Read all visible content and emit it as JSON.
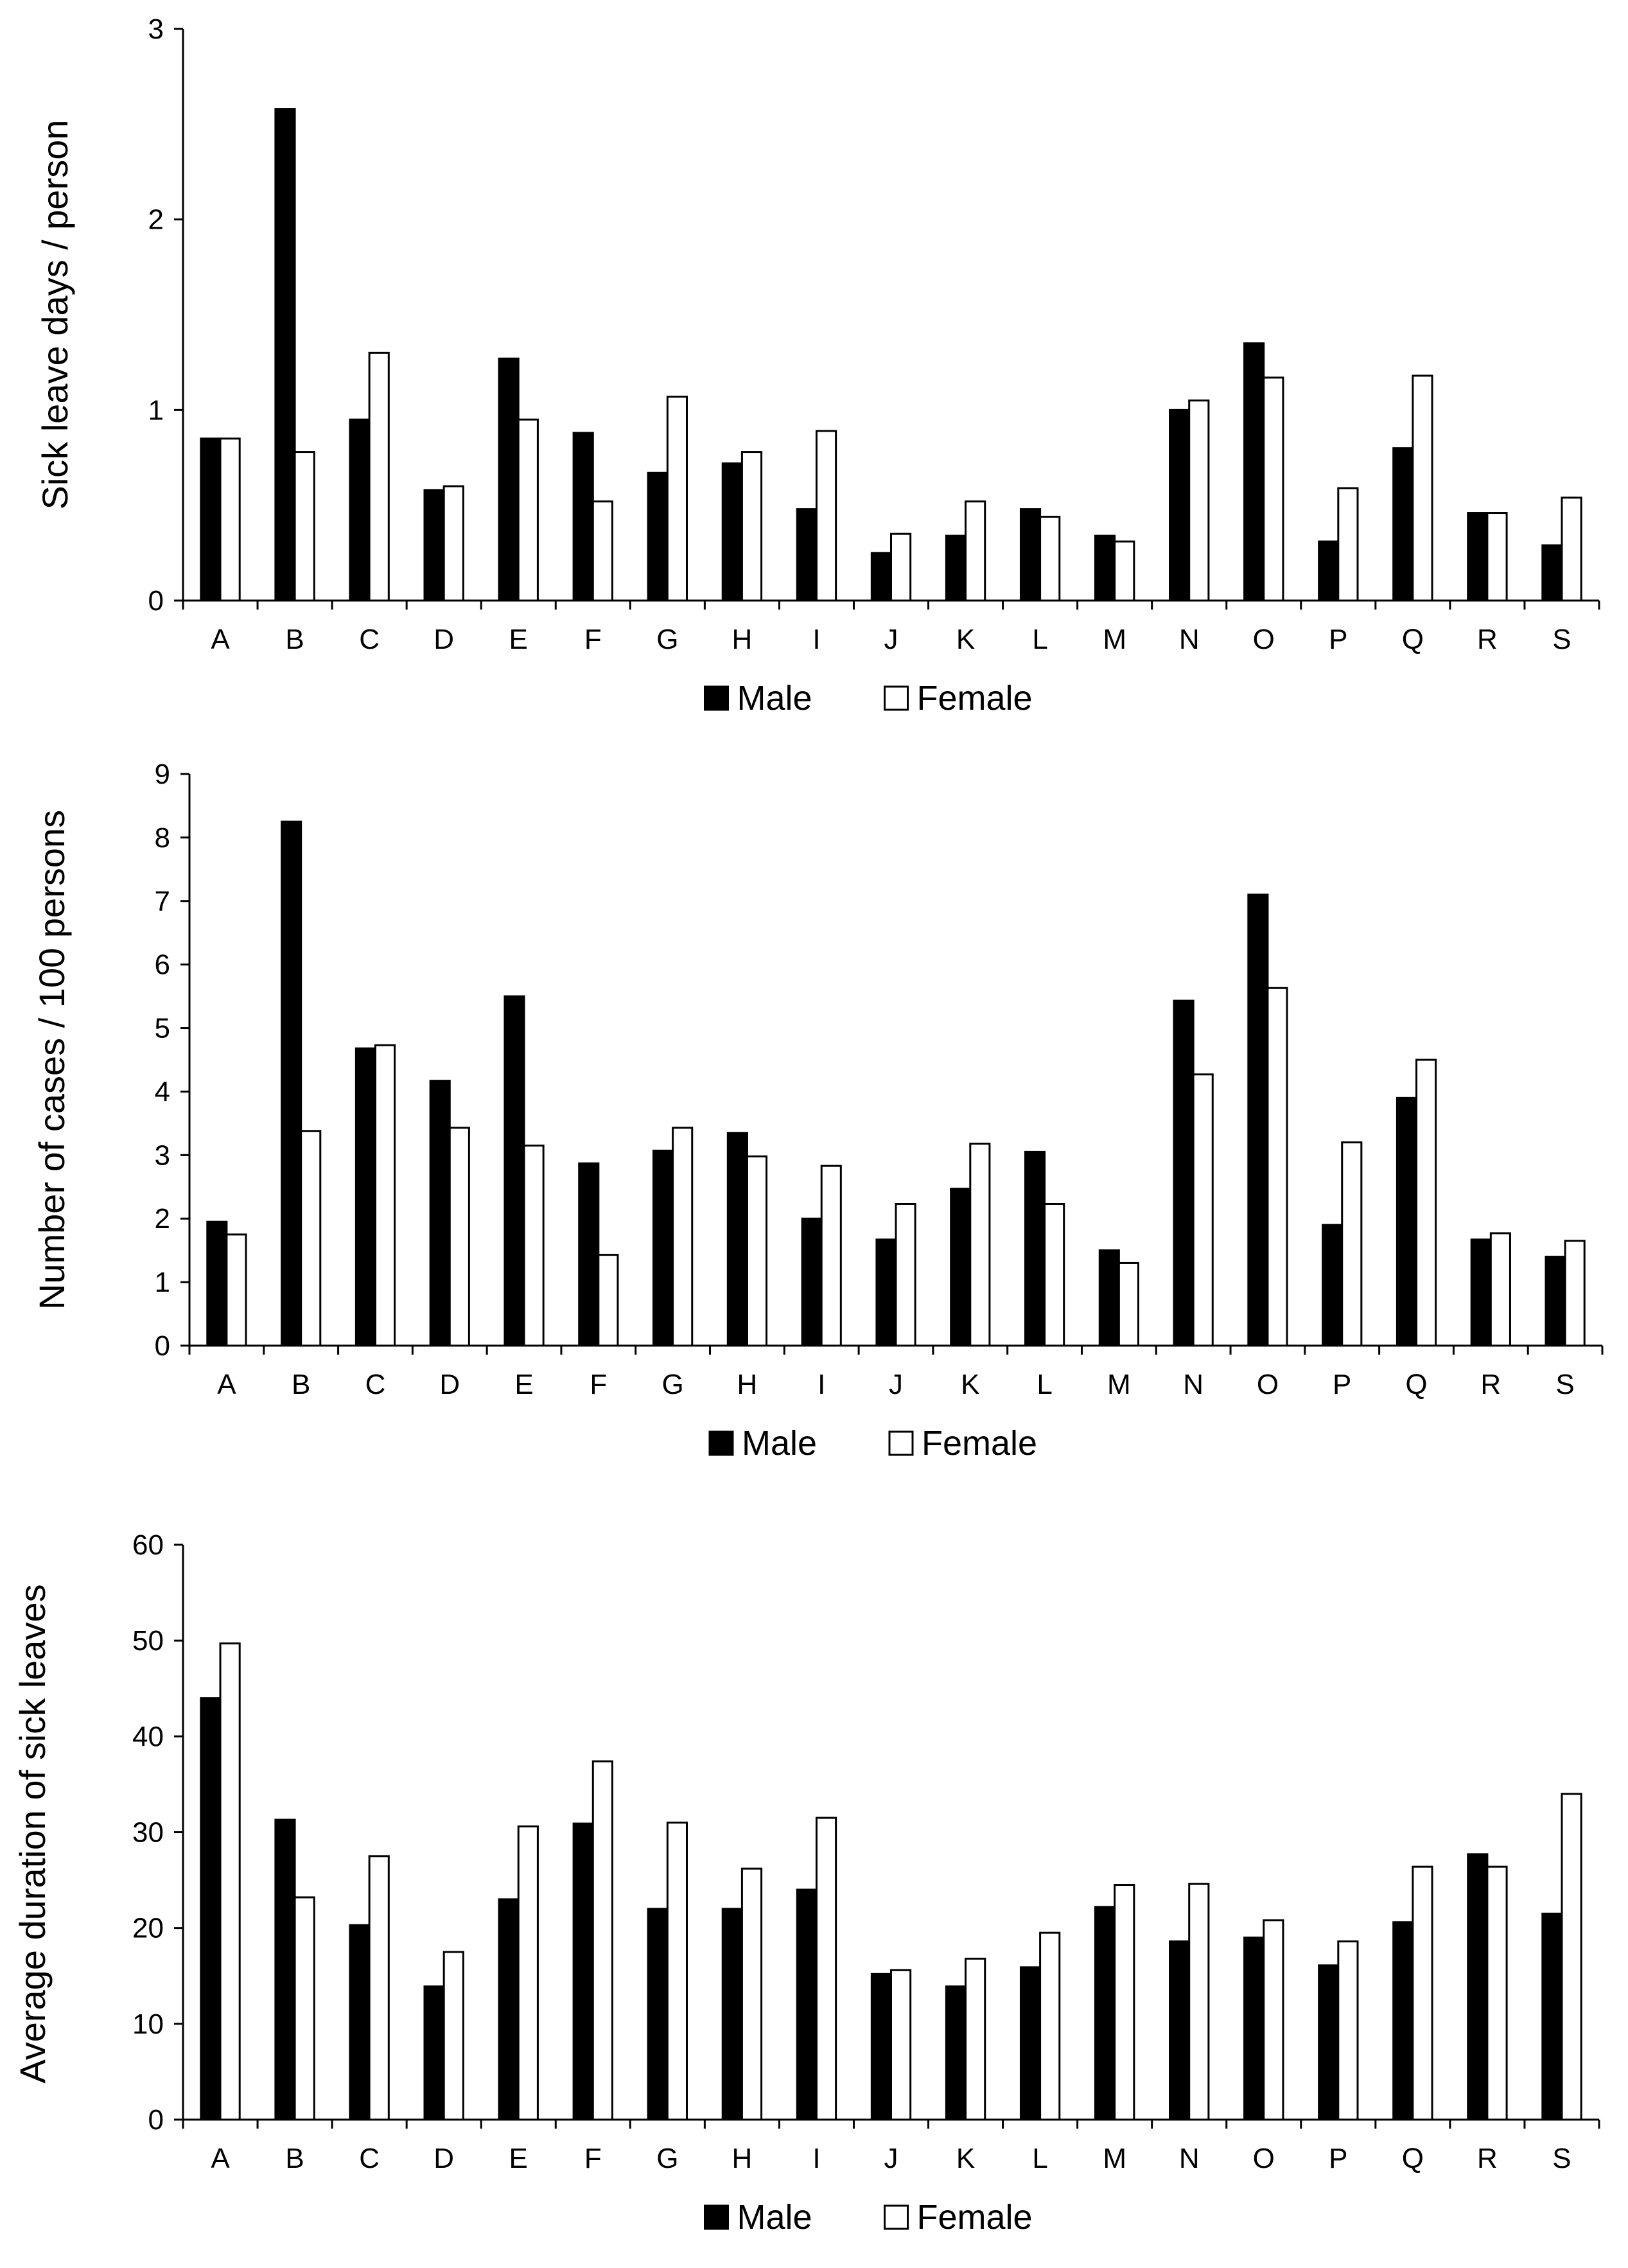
{
  "chart_data": [
    {
      "type": "bar",
      "ylabel": "Sick leave days / person",
      "xlabel": "",
      "ylim": [
        0,
        3
      ],
      "yticks": [
        0,
        1,
        2,
        3
      ],
      "categories": [
        "A",
        "B",
        "C",
        "D",
        "E",
        "F",
        "G",
        "H",
        "I",
        "J",
        "K",
        "L",
        "M",
        "N",
        "O",
        "P",
        "Q",
        "R",
        "S"
      ],
      "series": [
        {
          "name": "Male",
          "color": "#000000",
          "values": [
            0.85,
            2.58,
            0.95,
            0.58,
            1.27,
            0.88,
            0.67,
            0.72,
            0.48,
            0.25,
            0.34,
            0.48,
            0.34,
            1.0,
            1.35,
            0.31,
            0.8,
            0.46,
            0.29
          ]
        },
        {
          "name": "Female",
          "color": "#ffffff",
          "values": [
            0.85,
            0.78,
            1.3,
            0.6,
            0.95,
            0.52,
            1.07,
            0.78,
            0.89,
            0.35,
            0.52,
            0.44,
            0.31,
            1.05,
            1.17,
            0.59,
            1.18,
            0.46,
            0.54
          ]
        }
      ],
      "legend": [
        "Male",
        "Female"
      ]
    },
    {
      "type": "bar",
      "ylabel": "Number of cases / 100 persons",
      "xlabel": "",
      "ylim": [
        0,
        9
      ],
      "yticks": [
        0,
        1,
        2,
        3,
        4,
        5,
        6,
        7,
        8,
        9
      ],
      "categories": [
        "A",
        "B",
        "C",
        "D",
        "E",
        "F",
        "G",
        "H",
        "I",
        "J",
        "K",
        "L",
        "M",
        "N",
        "O",
        "P",
        "Q",
        "R",
        "S"
      ],
      "series": [
        {
          "name": "Male",
          "color": "#000000",
          "values": [
            1.95,
            8.25,
            4.68,
            4.17,
            5.5,
            2.87,
            3.07,
            3.35,
            2.0,
            1.67,
            2.47,
            3.05,
            1.5,
            5.43,
            7.1,
            1.9,
            3.9,
            1.67,
            1.4
          ]
        },
        {
          "name": "Female",
          "color": "#ffffff",
          "values": [
            1.75,
            3.38,
            4.73,
            3.43,
            3.15,
            1.43,
            3.43,
            2.98,
            2.83,
            2.23,
            3.18,
            2.23,
            1.3,
            4.27,
            5.63,
            3.2,
            4.5,
            1.77,
            1.65
          ]
        }
      ],
      "legend": [
        "Male",
        "Female"
      ]
    },
    {
      "type": "bar",
      "ylabel": "Average duration of sick leaves",
      "xlabel": "",
      "ylim": [
        0,
        60
      ],
      "yticks": [
        0,
        10,
        20,
        30,
        40,
        50,
        60
      ],
      "categories": [
        "A",
        "B",
        "C",
        "D",
        "E",
        "F",
        "G",
        "H",
        "I",
        "J",
        "K",
        "L",
        "M",
        "N",
        "O",
        "P",
        "Q",
        "R",
        "S"
      ],
      "series": [
        {
          "name": "Male",
          "color": "#000000",
          "values": [
            44,
            31.3,
            20.3,
            13.9,
            23.0,
            30.9,
            22.0,
            22.0,
            24.0,
            15.2,
            13.9,
            15.9,
            22.2,
            18.6,
            19.0,
            16.1,
            20.6,
            27.7,
            21.5
          ]
        },
        {
          "name": "Female",
          "color": "#ffffff",
          "values": [
            49.7,
            23.2,
            27.5,
            17.5,
            30.6,
            37.4,
            31.0,
            26.2,
            31.5,
            15.6,
            16.8,
            19.5,
            24.5,
            24.6,
            20.8,
            18.6,
            26.4,
            26.4,
            34.0
          ]
        }
      ],
      "legend": [
        "Male",
        "Female"
      ]
    }
  ]
}
